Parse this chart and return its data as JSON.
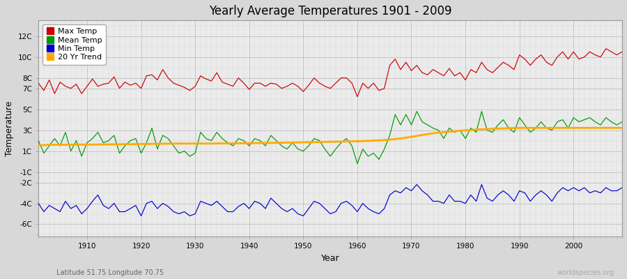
{
  "title": "Yearly Average Temperatures 1901 - 2009",
  "xlabel": "Year",
  "ylabel": "Temperature",
  "subtitle_left": "Latitude 51.75 Longitude 70.75",
  "subtitle_right": "worldspecies.org",
  "legend_labels": [
    "Max Temp",
    "Mean Temp",
    "Min Temp",
    "20 Yr Trend"
  ],
  "legend_colors": [
    "#cc0000",
    "#009900",
    "#0000cc",
    "#ffaa00"
  ],
  "line_colors": {
    "max": "#cc0000",
    "mean": "#009900",
    "min": "#0000cc",
    "trend": "#ffaa00"
  },
  "ytick_positions": [
    -6,
    -4,
    -2,
    -1,
    1,
    3,
    5,
    7,
    8,
    10,
    12
  ],
  "ytick_labels": [
    "-6C",
    "-4C",
    "-2C",
    "-1C",
    "1C",
    "3C",
    "5C",
    "7C",
    "8C",
    "10C",
    "12C"
  ],
  "xticks": [
    1910,
    1920,
    1930,
    1940,
    1950,
    1960,
    1970,
    1980,
    1990,
    2000
  ],
  "xlim": [
    1901,
    2009
  ],
  "ylim": [
    -7.2,
    13.5
  ],
  "years": [
    1901,
    1902,
    1903,
    1904,
    1905,
    1906,
    1907,
    1908,
    1909,
    1910,
    1911,
    1912,
    1913,
    1914,
    1915,
    1916,
    1917,
    1918,
    1919,
    1920,
    1921,
    1922,
    1923,
    1924,
    1925,
    1926,
    1927,
    1928,
    1929,
    1930,
    1931,
    1932,
    1933,
    1934,
    1935,
    1936,
    1937,
    1938,
    1939,
    1940,
    1941,
    1942,
    1943,
    1944,
    1945,
    1946,
    1947,
    1948,
    1949,
    1950,
    1951,
    1952,
    1953,
    1954,
    1955,
    1956,
    1957,
    1958,
    1959,
    1960,
    1961,
    1962,
    1963,
    1964,
    1965,
    1966,
    1967,
    1968,
    1969,
    1970,
    1971,
    1972,
    1973,
    1974,
    1975,
    1976,
    1977,
    1978,
    1979,
    1980,
    1981,
    1982,
    1983,
    1984,
    1985,
    1986,
    1987,
    1988,
    1989,
    1990,
    1991,
    1992,
    1993,
    1994,
    1995,
    1996,
    1997,
    1998,
    1999,
    2000,
    2001,
    2002,
    2003,
    2004,
    2005,
    2006,
    2007,
    2008,
    2009
  ],
  "max_temp": [
    7.5,
    6.8,
    7.8,
    6.5,
    7.6,
    7.2,
    7.0,
    7.4,
    6.5,
    7.2,
    7.9,
    7.2,
    7.4,
    7.5,
    8.1,
    7.0,
    7.6,
    7.3,
    7.5,
    7.0,
    8.2,
    8.3,
    7.8,
    8.8,
    8.0,
    7.5,
    7.3,
    7.1,
    6.8,
    7.2,
    8.2,
    7.9,
    7.7,
    8.5,
    7.6,
    7.4,
    7.2,
    8.0,
    7.5,
    6.9,
    7.5,
    7.5,
    7.2,
    7.5,
    7.4,
    7.0,
    7.2,
    7.5,
    7.2,
    6.7,
    7.3,
    8.0,
    7.5,
    7.2,
    7.0,
    7.5,
    8.0,
    8.0,
    7.5,
    6.2,
    7.5,
    7.0,
    7.5,
    6.8,
    7.0,
    9.2,
    9.8,
    8.8,
    9.5,
    8.7,
    9.2,
    8.5,
    8.3,
    8.8,
    8.5,
    8.2,
    8.9,
    8.2,
    8.5,
    7.8,
    8.8,
    8.5,
    9.5,
    8.8,
    8.5,
    9.0,
    9.5,
    9.2,
    8.8,
    10.2,
    9.8,
    9.2,
    9.8,
    10.2,
    9.5,
    9.2,
    10.0,
    10.5,
    9.8,
    10.5,
    9.8,
    10.0,
    10.5,
    10.2,
    10.0,
    10.8,
    10.5,
    10.2,
    10.5
  ],
  "mean_temp": [
    2.0,
    0.8,
    1.5,
    2.2,
    1.5,
    2.8,
    1.0,
    2.0,
    0.5,
    1.8,
    2.2,
    2.8,
    1.8,
    2.0,
    2.5,
    0.8,
    1.5,
    2.0,
    2.2,
    0.8,
    1.8,
    3.2,
    1.2,
    2.5,
    2.2,
    1.5,
    0.8,
    1.0,
    0.5,
    0.8,
    2.8,
    2.2,
    2.0,
    2.8,
    2.2,
    1.8,
    1.5,
    2.2,
    2.0,
    1.5,
    2.2,
    2.0,
    1.5,
    2.5,
    2.0,
    1.5,
    1.2,
    1.8,
    1.2,
    1.0,
    1.5,
    2.2,
    2.0,
    1.2,
    0.5,
    1.2,
    1.8,
    2.2,
    1.5,
    -0.2,
    1.2,
    0.5,
    0.8,
    0.2,
    1.2,
    2.5,
    4.5,
    3.5,
    4.5,
    3.5,
    4.8,
    3.8,
    3.5,
    3.2,
    3.0,
    2.2,
    3.2,
    2.8,
    3.0,
    2.2,
    3.2,
    2.8,
    4.8,
    3.0,
    2.8,
    3.5,
    4.0,
    3.2,
    2.8,
    4.2,
    3.5,
    2.8,
    3.2,
    3.8,
    3.2,
    3.0,
    3.8,
    4.0,
    3.2,
    4.2,
    3.8,
    4.0,
    4.2,
    3.8,
    3.5,
    4.2,
    3.8,
    3.5,
    3.8
  ],
  "min_temp": [
    -4.0,
    -4.8,
    -4.2,
    -4.5,
    -4.8,
    -3.8,
    -4.5,
    -4.2,
    -5.0,
    -4.5,
    -3.8,
    -3.2,
    -4.2,
    -4.5,
    -4.0,
    -4.8,
    -4.8,
    -4.5,
    -4.2,
    -5.2,
    -4.0,
    -3.8,
    -4.5,
    -4.0,
    -4.3,
    -4.8,
    -5.0,
    -4.8,
    -5.2,
    -5.0,
    -3.8,
    -4.0,
    -4.2,
    -3.8,
    -4.3,
    -4.8,
    -4.8,
    -4.3,
    -4.0,
    -4.5,
    -3.8,
    -4.0,
    -4.5,
    -3.5,
    -4.0,
    -4.5,
    -4.8,
    -4.5,
    -5.0,
    -5.2,
    -4.5,
    -3.8,
    -4.0,
    -4.5,
    -5.0,
    -4.8,
    -4.0,
    -3.8,
    -4.2,
    -4.8,
    -4.0,
    -4.5,
    -4.8,
    -5.0,
    -4.5,
    -3.2,
    -2.8,
    -3.0,
    -2.5,
    -2.8,
    -2.2,
    -2.8,
    -3.2,
    -3.8,
    -3.8,
    -4.0,
    -3.2,
    -3.8,
    -3.8,
    -4.0,
    -3.2,
    -3.8,
    -2.2,
    -3.5,
    -3.8,
    -3.2,
    -2.8,
    -3.2,
    -3.8,
    -2.8,
    -3.0,
    -3.8,
    -3.2,
    -2.8,
    -3.2,
    -3.8,
    -3.0,
    -2.5,
    -2.8,
    -2.5,
    -2.8,
    -2.5,
    -3.0,
    -2.8,
    -3.0,
    -2.5,
    -2.8,
    -2.8,
    -2.5
  ],
  "trend": [
    1.55,
    1.57,
    1.59,
    1.6,
    1.61,
    1.61,
    1.61,
    1.62,
    1.62,
    1.62,
    1.62,
    1.63,
    1.64,
    1.64,
    1.65,
    1.65,
    1.66,
    1.66,
    1.67,
    1.68,
    1.68,
    1.69,
    1.7,
    1.7,
    1.71,
    1.72,
    1.72,
    1.72,
    1.72,
    1.72,
    1.72,
    1.72,
    1.72,
    1.73,
    1.73,
    1.73,
    1.74,
    1.74,
    1.75,
    1.75,
    1.76,
    1.77,
    1.78,
    1.78,
    1.79,
    1.8,
    1.81,
    1.82,
    1.83,
    1.84,
    1.85,
    1.86,
    1.87,
    1.88,
    1.89,
    1.9,
    1.91,
    1.92,
    1.93,
    1.94,
    1.96,
    1.98,
    2.0,
    2.02,
    2.05,
    2.1,
    2.15,
    2.2,
    2.28,
    2.36,
    2.45,
    2.54,
    2.62,
    2.7,
    2.76,
    2.8,
    2.85,
    2.9,
    2.95,
    2.98,
    3.02,
    3.06,
    3.08,
    3.1,
    3.13,
    3.15,
    3.17,
    3.19,
    3.2,
    3.21,
    3.22,
    3.22,
    3.22,
    3.22,
    3.22,
    3.22,
    3.22,
    3.22,
    3.22,
    3.22,
    3.22,
    3.22,
    3.22,
    3.22,
    3.22,
    3.22,
    3.22,
    3.22,
    3.22
  ]
}
